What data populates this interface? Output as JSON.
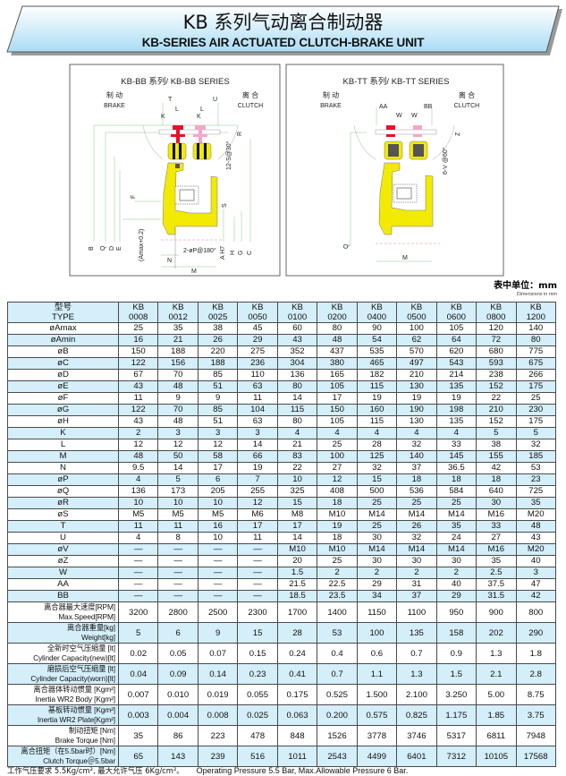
{
  "header": {
    "title_cn": "KB 系列气动离合制动器",
    "title_en": "KB-SERIES AIR ACTUATED CLUTCH-BRAKE UNIT"
  },
  "diagram_bb": {
    "title": "KB-BB 系列/ KB-BB SERIES",
    "brake_cn": "制 动",
    "brake_en": "BRAKE",
    "clutch_cn": "离 合",
    "clutch_en": "CLUTCH",
    "labels": {
      "T": "T",
      "U": "U",
      "K1": "K",
      "K2": "K",
      "L1": "L",
      "L2": "L",
      "R": "R",
      "bolt": "12-S@30°",
      "F": "F",
      "S": "S",
      "B": "B",
      "Q": "Q",
      "D": "D",
      "E": "E",
      "amax": "(Amax+0.2)",
      "N": "N",
      "M": "M",
      "P": "2-øP@180°",
      "AH7": "A H7",
      "H": "H",
      "G": "G",
      "C": "C"
    }
  },
  "diagram_tt": {
    "title": "KB-TT 系列/ KB-TT SERIES",
    "brake_cn": "制 动",
    "brake_en": "BRAKE",
    "clutch_cn": "离 合",
    "clutch_en": "CLUTCH",
    "labels": {
      "AA": "AA",
      "W1": "W",
      "W2": "W",
      "BB": "BB",
      "Z": "Z",
      "V": "6-V @60°",
      "Q": "Q",
      "M": "M"
    }
  },
  "unit": {
    "cn": "表中单位：mm",
    "en": "Dimensions in mm"
  },
  "table": {
    "header_cn": "型号",
    "header_en": "TYPE",
    "models": [
      [
        "KB",
        "0008"
      ],
      [
        "KB",
        "0012"
      ],
      [
        "KB",
        "0025"
      ],
      [
        "KB",
        "0050"
      ],
      [
        "KB",
        "0100"
      ],
      [
        "KB",
        "0200"
      ],
      [
        "KB",
        "0400"
      ],
      [
        "KB",
        "0500"
      ],
      [
        "KB",
        "0600"
      ],
      [
        "KB",
        "0800"
      ],
      [
        "KB",
        "1200"
      ]
    ],
    "rows": [
      {
        "label": "øAmax",
        "values": [
          "25",
          "35",
          "38",
          "45",
          "60",
          "80",
          "90",
          "100",
          "105",
          "120",
          "140"
        ]
      },
      {
        "label": "øAmin",
        "values": [
          "16",
          "21",
          "26",
          "29",
          "43",
          "48",
          "54",
          "62",
          "64",
          "72",
          "80"
        ]
      },
      {
        "label": "øB",
        "values": [
          "150",
          "188",
          "220",
          "275",
          "352",
          "437",
          "535",
          "570",
          "620",
          "680",
          "775"
        ]
      },
      {
        "label": "øC",
        "values": [
          "122",
          "156",
          "188",
          "236",
          "304",
          "380",
          "465",
          "497",
          "543",
          "593",
          "675"
        ]
      },
      {
        "label": "øD",
        "values": [
          "67",
          "70",
          "85",
          "110",
          "136",
          "165",
          "182",
          "210",
          "214",
          "238",
          "266"
        ]
      },
      {
        "label": "øE",
        "values": [
          "43",
          "48",
          "51",
          "63",
          "80",
          "105",
          "115",
          "130",
          "135",
          "152",
          "175"
        ]
      },
      {
        "label": "øF",
        "values": [
          "11",
          "9",
          "9",
          "11",
          "14",
          "17",
          "19",
          "19",
          "19",
          "22",
          "25"
        ]
      },
      {
        "label": "øG",
        "values": [
          "122",
          "70",
          "85",
          "104",
          "115",
          "150",
          "160",
          "190",
          "198",
          "210",
          "230"
        ]
      },
      {
        "label": "øH",
        "values": [
          "43",
          "48",
          "51",
          "63",
          "80",
          "105",
          "115",
          "130",
          "135",
          "152",
          "175"
        ]
      },
      {
        "label": "K",
        "values": [
          "2",
          "3",
          "3",
          "3",
          "4",
          "4",
          "4",
          "4",
          "4",
          "5",
          "5"
        ]
      },
      {
        "label": "L",
        "values": [
          "12",
          "12",
          "12",
          "14",
          "21",
          "25",
          "28",
          "32",
          "33",
          "38",
          "32"
        ]
      },
      {
        "label": "M",
        "values": [
          "48",
          "50",
          "58",
          "66",
          "83",
          "100",
          "125",
          "140",
          "145",
          "155",
          "185"
        ]
      },
      {
        "label": "N",
        "values": [
          "9.5",
          "14",
          "17",
          "19",
          "22",
          "27",
          "32",
          "37",
          "36.5",
          "42",
          "53"
        ]
      },
      {
        "label": "øP",
        "values": [
          "4",
          "5",
          "6",
          "7",
          "10",
          "12",
          "15",
          "18",
          "18",
          "18",
          "23"
        ]
      },
      {
        "label": "øQ",
        "values": [
          "136",
          "173",
          "205",
          "255",
          "325",
          "408",
          "500",
          "536",
          "584",
          "640",
          "725"
        ]
      },
      {
        "label": "øR",
        "values": [
          "10",
          "10",
          "10",
          "12",
          "15",
          "18",
          "25",
          "25",
          "25",
          "30",
          "35"
        ]
      },
      {
        "label": "øS",
        "values": [
          "M5",
          "M5",
          "M5",
          "M6",
          "M8",
          "M10",
          "M14",
          "M14",
          "M14",
          "M16",
          "M20"
        ]
      },
      {
        "label": "T",
        "values": [
          "11",
          "11",
          "16",
          "17",
          "17",
          "19",
          "25",
          "26",
          "35",
          "33",
          "48"
        ]
      },
      {
        "label": "U",
        "values": [
          "4",
          "8",
          "10",
          "11",
          "14",
          "18",
          "30",
          "32",
          "24",
          "27",
          "43"
        ]
      },
      {
        "label": "øV",
        "values": [
          "—",
          "—",
          "—",
          "—",
          "M10",
          "M10",
          "M14",
          "M14",
          "M14",
          "M16",
          "M20"
        ]
      },
      {
        "label": "øZ",
        "values": [
          "—",
          "—",
          "—",
          "—",
          "20",
          "25",
          "30",
          "30",
          "30",
          "35",
          "40"
        ]
      },
      {
        "label": "W",
        "values": [
          "—",
          "—",
          "—",
          "—",
          "1.5",
          "2",
          "2",
          "2",
          "2",
          "2.5",
          "3"
        ]
      },
      {
        "label": "AA",
        "values": [
          "—",
          "—",
          "—",
          "—",
          "21.5",
          "22.5",
          "29",
          "31",
          "40",
          "37.5",
          "47"
        ]
      },
      {
        "label": "BB",
        "values": [
          "—",
          "—",
          "—",
          "—",
          "18.5",
          "23.5",
          "34",
          "37",
          "29",
          "31.5",
          "42"
        ]
      }
    ],
    "detail_rows": [
      {
        "cn": "离合器最大速度[RPM]",
        "en": "Max.Speed[RPM]",
        "values": [
          "3200",
          "2800",
          "2500",
          "2300",
          "1700",
          "1400",
          "1150",
          "1100",
          "950",
          "900",
          "800"
        ]
      },
      {
        "cn": "离合器重量[kg]",
        "en": "Weight[kg]",
        "values": [
          "5",
          "6",
          "9",
          "15",
          "28",
          "53",
          "100",
          "135",
          "158",
          "202",
          "290"
        ]
      },
      {
        "cn": "全新时空气压缩量 [lt]",
        "en": "Cylinder Capacity(new)[lt]",
        "values": [
          "0.02",
          "0.05",
          "0.07",
          "0.15",
          "0.24",
          "0.4",
          "0.6",
          "0.7",
          "0.9",
          "1.3",
          "1.8"
        ]
      },
      {
        "cn": "磨损后空气压缩量 [lt]",
        "en": "Cylinder Capacity(worn)[lt]",
        "values": [
          "0.04",
          "0.09",
          "0.14",
          "0.23",
          "0.41",
          "0.7",
          "1.1",
          "1.3",
          "1.5",
          "2.1",
          "2.8"
        ]
      },
      {
        "cn": "离合器体转动惯量 [Kgm²]",
        "en": "Inertia WR2 Body [Kgm²]",
        "values": [
          "0.007",
          "0.010",
          "0.019",
          "0.055",
          "0.175",
          "0.525",
          "1.500",
          "2.100",
          "3.250",
          "5.00",
          "8.75"
        ]
      },
      {
        "cn": "基板转动惯量 [Kgm²]",
        "en": "Inertia WR2 Plate[Kgm²]",
        "values": [
          "0.003",
          "0.004",
          "0.008",
          "0.025",
          "0.063",
          "0.200",
          "0.575",
          "0.825",
          "1.175",
          "1.85",
          "3.75"
        ]
      },
      {
        "cn": "制动扭矩 [Nm]",
        "en": "Brake Torque [Nm]",
        "values": [
          "35",
          "86",
          "223",
          "478",
          "848",
          "1526",
          "3778",
          "3746",
          "5317",
          "6811",
          "7948"
        ]
      },
      {
        "cn": "离合扭矩（在5.5bar时）[Nm]",
        "en": "Clutch Torque＠5.5bar",
        "values": [
          "65",
          "143",
          "239",
          "516",
          "1011",
          "2543",
          "4499",
          "6401",
          "7312",
          "10105",
          "17568"
        ]
      }
    ]
  },
  "footer": {
    "cn": "工作气压要求 5.5Kg/cm², 最大允许气压 6Kg/cm²。",
    "en": "Operating Pressure 5.5 Bar, Max.Allowable Pressure 6 Bar."
  },
  "colors": {
    "row_blue": "#d4eefa",
    "body_yellow": "#f2ea00",
    "brake_red": "#e8102a",
    "clutch_pink": "#f4a6c8"
  }
}
